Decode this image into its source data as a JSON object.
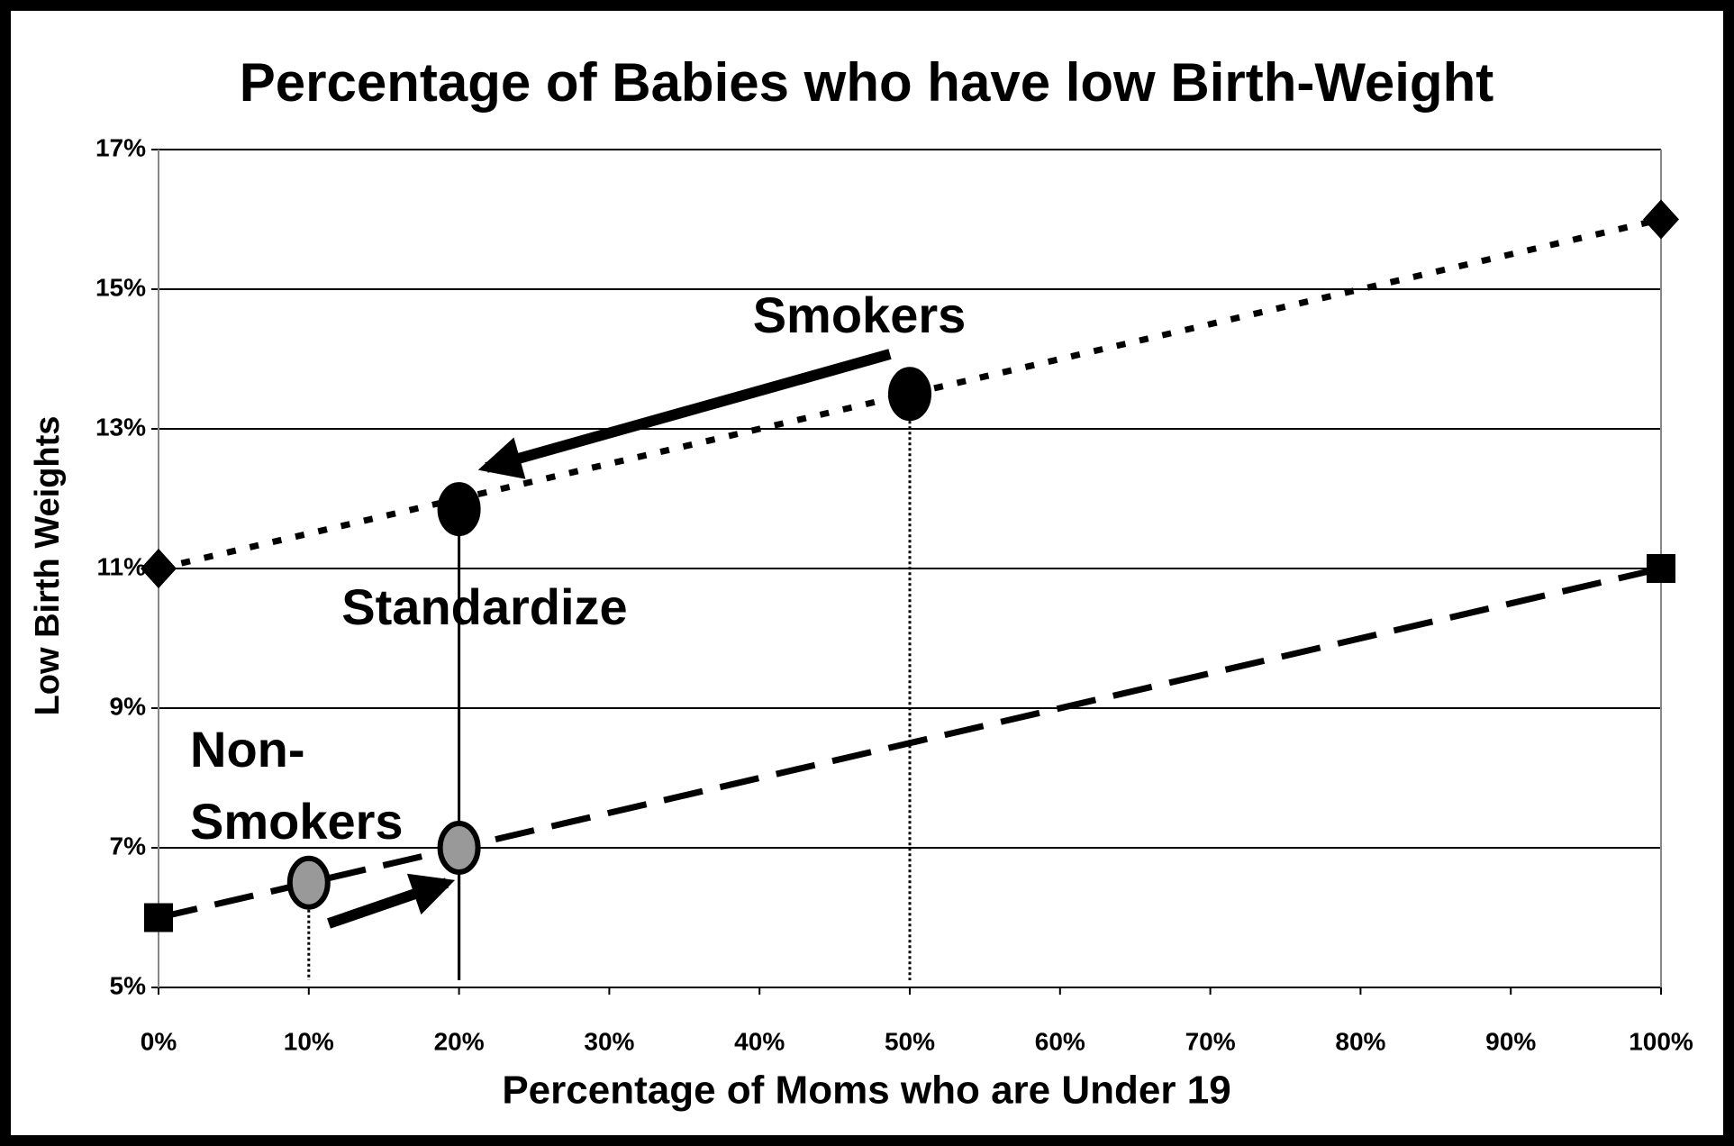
{
  "chart_data": {
    "type": "line",
    "title": "Percentage of Babies who have low Birth-Weight",
    "x_label": "Percentage of Moms who are Under 19",
    "y_label": "Low Birth Weights",
    "xlim": [
      0,
      100
    ],
    "ylim": [
      5,
      17
    ],
    "xticks": [
      {
        "value": 0,
        "label": "0%"
      },
      {
        "value": 10,
        "label": "10%"
      },
      {
        "value": 20,
        "label": "20%"
      },
      {
        "value": 30,
        "label": "30%"
      },
      {
        "value": 40,
        "label": "40%"
      },
      {
        "value": 50,
        "label": "50%"
      },
      {
        "value": 60,
        "label": "60%"
      },
      {
        "value": 70,
        "label": "70%"
      },
      {
        "value": 80,
        "label": "80%"
      },
      {
        "value": 90,
        "label": "90%"
      },
      {
        "value": 100,
        "label": "100%"
      }
    ],
    "yticks": [
      {
        "value": 5,
        "label": "5%"
      },
      {
        "value": 7,
        "label": "7%"
      },
      {
        "value": 9,
        "label": "9%"
      },
      {
        "value": 11,
        "label": "11%"
      },
      {
        "value": 13,
        "label": "13%"
      },
      {
        "value": 15,
        "label": "15%"
      },
      {
        "value": 17,
        "label": "17%"
      }
    ],
    "grid": true,
    "series": [
      {
        "x": [
          0,
          100
        ],
        "values": [
          11,
          16
        ],
        "marker": "diamond",
        "line": "dotted",
        "color": "#000000"
      },
      {
        "x": [
          0,
          100
        ],
        "values": [
          6,
          11
        ],
        "marker": "square",
        "line": "dashed",
        "color": "#000000"
      },
      {
        "x": [
          20,
          50
        ],
        "values": [
          11.85,
          13.5
        ],
        "marker": "circle",
        "line": "none",
        "drop_lines": [
          "solid",
          "dotted"
        ],
        "color": "#000000"
      },
      {
        "x": [
          10,
          20
        ],
        "values": [
          6.5,
          7
        ],
        "marker": "circle",
        "line": "none",
        "drop_lines": [
          "dotted",
          "solid"
        ],
        "color": "#999999"
      }
    ],
    "annotations": [
      "Smokers",
      "Standardize",
      "Non-",
      "Smokers"
    ]
  }
}
